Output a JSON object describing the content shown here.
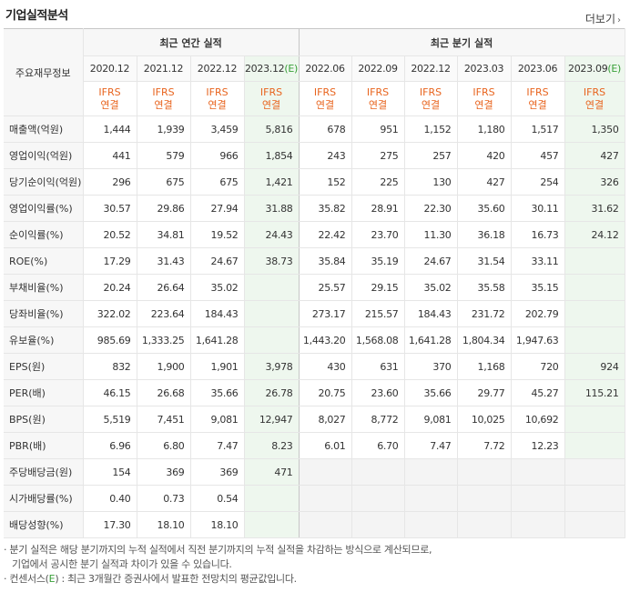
{
  "title": "기업실적분석",
  "more_label": "더보기",
  "header": {
    "rowhead": "주요재무정보",
    "annual_group": "최근 연간 실적",
    "quarter_group": "최근 분기 실적",
    "periods": [
      "2020.12",
      "2021.12",
      "2022.12",
      "2023.12",
      "2022.06",
      "2022.09",
      "2022.12",
      "2023.03",
      "2023.06",
      "2023.09"
    ],
    "est_suffix": "(E)",
    "ifrs_line1": "IFRS",
    "ifrs_line2": "연결"
  },
  "rows": [
    {
      "label": "매출액(억원)",
      "values": [
        "1,444",
        "1,939",
        "3,459",
        "5,816",
        "678",
        "951",
        "1,152",
        "1,180",
        "1,517",
        "1,350"
      ]
    },
    {
      "label": "영업이익(억원)",
      "values": [
        "441",
        "579",
        "966",
        "1,854",
        "243",
        "275",
        "257",
        "420",
        "457",
        "427"
      ]
    },
    {
      "label": "당기순이익(억원)",
      "values": [
        "296",
        "675",
        "675",
        "1,421",
        "152",
        "225",
        "130",
        "427",
        "254",
        "326"
      ]
    },
    {
      "label": "영업이익률(%)",
      "values": [
        "30.57",
        "29.86",
        "27.94",
        "31.88",
        "35.82",
        "28.91",
        "22.30",
        "35.60",
        "30.11",
        "31.62"
      ]
    },
    {
      "label": "순이익률(%)",
      "values": [
        "20.52",
        "34.81",
        "19.52",
        "24.43",
        "22.42",
        "23.70",
        "11.30",
        "36.18",
        "16.73",
        "24.12"
      ]
    },
    {
      "label": "ROE(%)",
      "values": [
        "17.29",
        "31.43",
        "24.67",
        "38.73",
        "35.84",
        "35.19",
        "24.67",
        "31.54",
        "33.11",
        ""
      ]
    },
    {
      "label": "부채비율(%)",
      "values": [
        "20.24",
        "26.64",
        "35.02",
        "",
        "25.57",
        "29.15",
        "35.02",
        "35.58",
        "35.15",
        ""
      ]
    },
    {
      "label": "당좌비율(%)",
      "values": [
        "322.02",
        "223.64",
        "184.43",
        "",
        "273.17",
        "215.57",
        "184.43",
        "231.72",
        "202.79",
        ""
      ]
    },
    {
      "label": "유보율(%)",
      "values": [
        "985.69",
        "1,333.25",
        "1,641.28",
        "",
        "1,443.20",
        "1,568.08",
        "1,641.28",
        "1,804.34",
        "1,947.63",
        ""
      ]
    },
    {
      "label": "EPS(원)",
      "values": [
        "832",
        "1,900",
        "1,901",
        "3,978",
        "430",
        "631",
        "370",
        "1,168",
        "720",
        "924"
      ]
    },
    {
      "label": "PER(배)",
      "values": [
        "46.15",
        "26.68",
        "35.66",
        "26.78",
        "20.75",
        "23.60",
        "35.66",
        "29.77",
        "45.27",
        "115.21"
      ]
    },
    {
      "label": "BPS(원)",
      "values": [
        "5,519",
        "7,451",
        "9,081",
        "12,947",
        "8,027",
        "8,772",
        "9,081",
        "10,025",
        "10,692",
        ""
      ]
    },
    {
      "label": "PBR(배)",
      "values": [
        "6.96",
        "6.80",
        "7.47",
        "8.23",
        "6.01",
        "6.70",
        "7.47",
        "7.72",
        "12.23",
        ""
      ]
    },
    {
      "label": "주당배당금(원)",
      "values": [
        "154",
        "369",
        "369",
        "471",
        "",
        "",
        "",
        "",
        "",
        ""
      ]
    },
    {
      "label": "시가배당률(%)",
      "values": [
        "0.40",
        "0.73",
        "0.54",
        "",
        "",
        "",
        "",
        "",
        "",
        ""
      ]
    },
    {
      "label": "배당성향(%)",
      "values": [
        "17.30",
        "18.10",
        "18.10",
        "",
        "",
        "",
        "",
        "",
        "",
        ""
      ]
    }
  ],
  "notes": {
    "line1": "· 분기 실적은 해당 분기까지의 누적 실적에서 직전 분기까지의 누적 실적을 차감하는 방식으로 계산되므로,",
    "line2": "기업에서 공시한 분기 실적과 차이가 있을 수 있습니다.",
    "line3_a": "· 컨센서스(",
    "line3_e": "E",
    "line3_b": ") : 최근 3개월간 증권사에서 발표한 전망치의 평균값입니다."
  }
}
